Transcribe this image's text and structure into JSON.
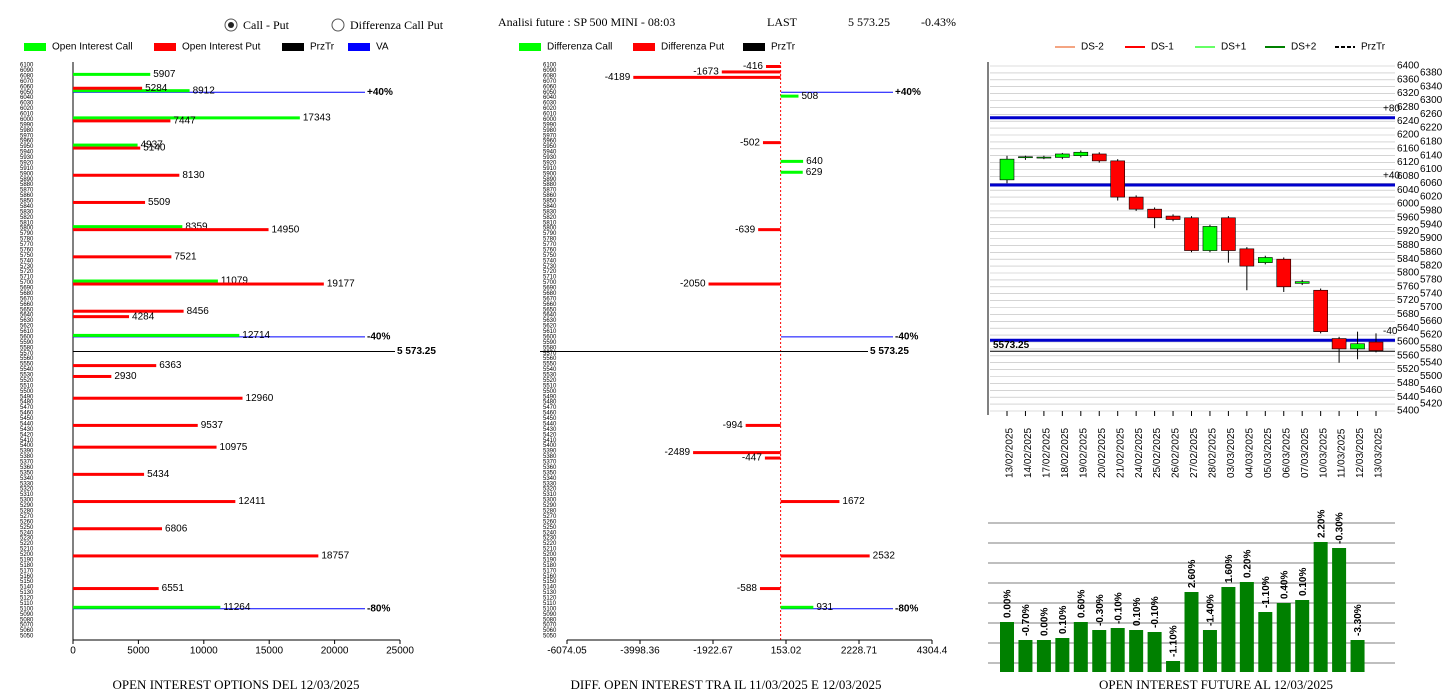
{
  "header": {
    "option1": "Call - Put",
    "option2": "Differenza Call Put",
    "title": "Analisi future : SP 500 MINI - 08:03",
    "last_label": "LAST",
    "last": "5 573.25",
    "change": "-0.43%"
  },
  "price": 5573.25,
  "strikes": [
    6100,
    6090,
    6080,
    6070,
    6060,
    6050,
    6040,
    6030,
    6020,
    6010,
    6000,
    5990,
    5980,
    5970,
    5960,
    5950,
    5940,
    5930,
    5920,
    5910,
    5900,
    5890,
    5880,
    5870,
    5860,
    5850,
    5840,
    5830,
    5820,
    5810,
    5800,
    5790,
    5780,
    5770,
    5760,
    5750,
    5740,
    5730,
    5720,
    5710,
    5700,
    5690,
    5680,
    5670,
    5660,
    5650,
    5640,
    5630,
    5620,
    5610,
    5600,
    5590,
    5580,
    5570,
    5560,
    5550,
    5540,
    5530,
    5520,
    5510,
    5500,
    5490,
    5480,
    5470,
    5460,
    5450,
    5440,
    5430,
    5420,
    5410,
    5400,
    5390,
    5380,
    5370,
    5360,
    5350,
    5340,
    5330,
    5320,
    5310,
    5300,
    5290,
    5280,
    5270,
    5260,
    5250,
    5240,
    5230,
    5220,
    5210,
    5200,
    5190,
    5180,
    5170,
    5160,
    5150,
    5140,
    5130,
    5120,
    5110,
    5100,
    5090,
    5080,
    5070,
    5060,
    5050
  ],
  "chart_data": [
    {
      "type": "hbar",
      "title": "OPEN INTEREST OPTIONS DEL 12/03/2025",
      "price_label": "5 573.25",
      "xlim": [
        0,
        25000
      ],
      "xticks": [
        0,
        5000,
        10000,
        15000,
        20000,
        25000
      ],
      "series": [
        {
          "name": "Open Interest Call",
          "color": "#00ff00",
          "strikes": [
            6080,
            6050,
            6000,
            5950,
            5800,
            5700,
            5600,
            5100
          ],
          "values": [
            5907,
            8912,
            17343,
            4937,
            8359,
            11079,
            12714,
            11264
          ]
        },
        {
          "name": "Open Interest Put",
          "color": "#ff0000",
          "strikes": [
            6060,
            6000,
            5950,
            5900,
            5850,
            5800,
            5750,
            5700,
            5650,
            5640,
            5550,
            5530,
            5490,
            5440,
            5400,
            5350,
            5300,
            5250,
            5200,
            5140
          ],
          "values": [
            5284,
            7447,
            5140,
            8130,
            5509,
            14950,
            7521,
            19177,
            8456,
            4284,
            6363,
            2930,
            12960,
            9537,
            10975,
            5434,
            12411,
            6806,
            18757,
            6551
          ]
        },
        {
          "name": "PrzTr",
          "color": "#000000"
        },
        {
          "name": "VA",
          "color": "#0000ff"
        }
      ],
      "levels": [
        {
          "strike": 6050,
          "label": "+40%"
        },
        {
          "strike": 5600,
          "label": "-40%"
        },
        {
          "strike": 5100,
          "label": "-80%"
        }
      ]
    },
    {
      "type": "diffbar",
      "title": "DIFF. OPEN INTEREST TRA IL 11/03/2025 E 12/03/2025",
      "price_label": "5 573.25",
      "xlim": [
        -6074.05,
        4304.4
      ],
      "xticks": [
        -6074.05,
        -3998.36,
        -1922.67,
        153.02,
        2228.71,
        4304.4
      ],
      "series": [
        {
          "name": "Differenza Call",
          "color": "#00ff00",
          "strikes": [
            6040,
            5920,
            5900,
            5100
          ],
          "values": [
            508,
            640,
            629,
            931
          ]
        },
        {
          "name": "Differenza Put",
          "color": "#ff0000",
          "strikes": [
            6100,
            6090,
            6080,
            5960,
            5800,
            5700,
            5440,
            5390,
            5380,
            5300,
            5200,
            5140
          ],
          "values": [
            -416,
            -1673,
            -4189,
            -502,
            -639,
            -2050,
            -994,
            -2489,
            -447,
            1672,
            2532,
            -588
          ]
        },
        {
          "name": "PrzTr",
          "color": "#000000"
        }
      ],
      "levels": [
        {
          "strike": 6050,
          "label": "+40%"
        },
        {
          "strike": 5600,
          "label": "-40%"
        },
        {
          "strike": 5100,
          "label": "-80%"
        }
      ]
    },
    {
      "type": "candlestick",
      "price_label": "5573.25",
      "x": [
        "13/02/2025",
        "14/02/2025",
        "17/02/2025",
        "18/02/2025",
        "19/02/2025",
        "20/02/2025",
        "21/02/2025",
        "24/02/2025",
        "25/02/2025",
        "26/02/2025",
        "27/02/2025",
        "28/02/2025",
        "03/03/2025",
        "04/03/2025",
        "05/03/2025",
        "06/03/2025",
        "07/03/2025",
        "10/03/2025",
        "11/03/2025",
        "12/03/2025",
        "13/03/2025"
      ],
      "open": [
        6070,
        6135,
        6135,
        6135,
        6140,
        6145,
        6125,
        6020,
        5985,
        5965,
        5960,
        5865,
        5960,
        5870,
        5830,
        5840,
        5770,
        5750,
        5610,
        5580,
        5600
      ],
      "high": [
        6140,
        6140,
        6140,
        6148,
        6155,
        6150,
        6130,
        6025,
        5990,
        5970,
        5965,
        5940,
        5965,
        5875,
        5850,
        5845,
        5780,
        5755,
        5615,
        5630,
        5625
      ],
      "low": [
        6060,
        6128,
        6130,
        6130,
        6135,
        6120,
        6010,
        5980,
        5930,
        5950,
        5860,
        5860,
        5830,
        5750,
        5825,
        5745,
        5765,
        5625,
        5540,
        5550,
        5570
      ],
      "close": [
        6130,
        6137,
        6136,
        6145,
        6150,
        6125,
        6020,
        5985,
        5960,
        5955,
        5865,
        5935,
        5865,
        5820,
        5845,
        5760,
        5775,
        5630,
        5580,
        5595,
        5575
      ],
      "up_color": "#00ff00",
      "down_color": "#ff0000",
      "ylim": [
        5400,
        6400
      ],
      "yticks": [
        5400,
        5420,
        5440,
        5460,
        5480,
        5500,
        5520,
        5540,
        5560,
        5580,
        5600,
        5620,
        5640,
        5660,
        5680,
        5700,
        5720,
        5740,
        5760,
        5780,
        5800,
        5820,
        5840,
        5860,
        5880,
        5900,
        5920,
        5940,
        5960,
        5980,
        6000,
        6020,
        6040,
        6060,
        6080,
        6100,
        6120,
        6140,
        6160,
        6180,
        6200,
        6220,
        6240,
        6260,
        6280,
        6300,
        6320,
        6340,
        6360,
        6380,
        6400
      ],
      "grid": true,
      "legend": [
        {
          "name": "DS-2",
          "color": "#f4a582"
        },
        {
          "name": "DS-1",
          "color": "#ff0000"
        },
        {
          "name": "DS+1",
          "color": "#66ff66"
        },
        {
          "name": "DS+2",
          "color": "#008000"
        },
        {
          "name": "PrzTr",
          "color": "#000000"
        }
      ],
      "levels": [
        {
          "value": 6250,
          "label": "+80"
        },
        {
          "value": 6055,
          "label": "+40"
        },
        {
          "value": 5605,
          "label": "-40"
        }
      ]
    },
    {
      "type": "bar",
      "title": "OPEN INTEREST FUTURE AL 12/03/2025",
      "color": "#008000",
      "values": [
        50,
        32,
        32,
        34,
        50,
        42,
        44,
        42,
        40,
        11,
        80,
        42,
        85,
        90,
        60,
        69,
        72,
        130,
        124,
        32
      ],
      "annotations": [
        "0.00%",
        "-0.70%",
        "0.00%",
        "0.10%",
        "0.60%",
        "-0.30%",
        "-0.10%",
        "0.10%",
        "-0.10%",
        "-1.10%",
        "2.60%",
        "-1.40%",
        "1.60%",
        "0.20%",
        "-1.10%",
        "0.40%",
        "0.10%",
        "2.20%",
        "-0.30%",
        "-3.30%"
      ]
    }
  ]
}
